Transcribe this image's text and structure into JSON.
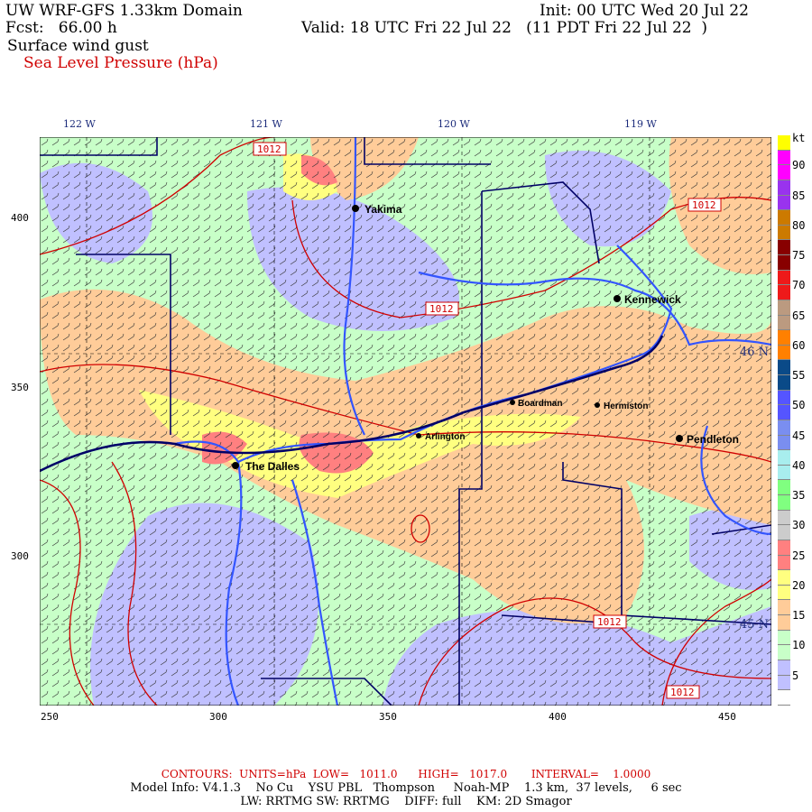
{
  "header": {
    "title": "UW WRF-GFS 1.33km Domain",
    "init": "Init: 00 UTC Wed 20 Jul 22",
    "fcst": "Fcst:   66.00 h",
    "valid": "Valid: 18 UTC Fri 22 Jul 22   (11 PDT Fri 22 Jul 22  )",
    "field1": "Surface wind gust",
    "field2": "Sea Level Pressure (hPa)"
  },
  "axes": {
    "top_lon": [
      "122 W",
      "121 W",
      "120 W",
      "119 W"
    ],
    "left_y": [
      "400",
      "350",
      "300"
    ],
    "bottom_x": [
      "250",
      "300",
      "350",
      "400",
      "450"
    ],
    "right_lat": [
      "46 N",
      "45 N"
    ]
  },
  "colorbar": {
    "unit": "kt",
    "labels": [
      "90",
      "85",
      "80",
      "75",
      "70",
      "65",
      "60",
      "55",
      "50",
      "45",
      "40",
      "35",
      "30",
      "25",
      "20",
      "15",
      "10",
      "5"
    ],
    "colors": [
      "#ffff00",
      "#ff00ff",
      "#ff00ff",
      "#9933ee",
      "#9933ee",
      "#cc7a00",
      "#cc7a00",
      "#880000",
      "#880000",
      "#ee1a1a",
      "#ee1a1a",
      "#bb9a80",
      "#bb9a80",
      "#ff8000",
      "#ff8000",
      "#0a4a88",
      "#0a4a88",
      "#5555ff",
      "#5555ff",
      "#7a8ef0",
      "#7a8ef0",
      "#a8eeee",
      "#a8eeee",
      "#80ff80",
      "#80ff80",
      "#cccccc",
      "#cccccc",
      "#ff8080",
      "#ff8080",
      "#ffff80",
      "#ffff80",
      "#ffcc99",
      "#ffcc99",
      "#c8ffc8",
      "#c8ffc8",
      "#c0c0ff",
      "#c0c0ff",
      "#ffffff"
    ]
  },
  "map": {
    "cities": [
      {
        "name": "Yakima"
      },
      {
        "name": "Kennewick"
      },
      {
        "name": "Boardman"
      },
      {
        "name": "Hermiston"
      },
      {
        "name": "Arlington"
      },
      {
        "name": "Pendleton"
      },
      {
        "name": "The Dalles"
      }
    ],
    "contour_labels": [
      "1012",
      "1012",
      "1012",
      "1012",
      "1012"
    ],
    "colors": {
      "calm": "#c0c0ff",
      "light": "#c8ffc8",
      "moderate": "#ffcc99",
      "strong": "#ffff80",
      "gust": "#ff8080",
      "contour": "#d00000",
      "river": "#3355ff",
      "border": "#000066"
    }
  },
  "footer": {
    "contours": "CONTOURS:  UNITS=hPa  LOW=   1011.0      HIGH=   1017.0       INTERVAL=    1.0000",
    "model": "Model Info: V4.1.3    No Cu    YSU PBL   Thompson     Noah-MP    1.3 km,  37 levels,     6 sec",
    "physics": "LW: RRTMG SW: RRTMG    DIFF: full    KM: 2D Smagor"
  }
}
